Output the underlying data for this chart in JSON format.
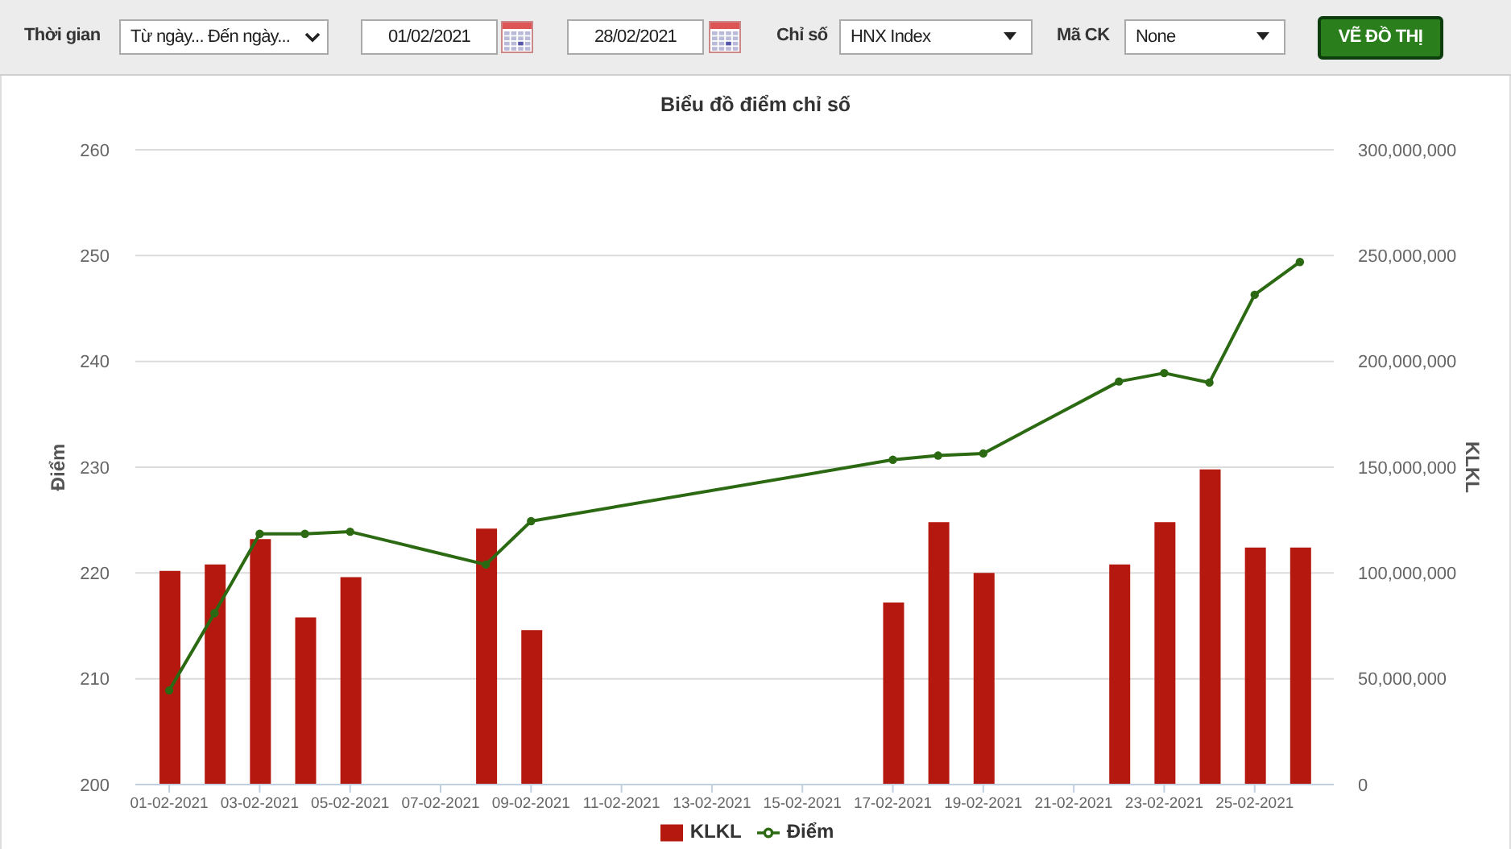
{
  "chart_data": {
    "type": "bar",
    "title": "Biểu đồ điểm chỉ số",
    "ylabel": "Điểm",
    "y2label": "KLKL",
    "annotations": [
      "Thời gian",
      "Từ ngày... Đến ngày...",
      "01/02/2021",
      "28/02/2021",
      "Chỉ số",
      "HNX Index",
      "Mã CK",
      "None",
      "VẼ ĐỒ THỊ"
    ],
    "x": [
      "2021-02-01",
      "2021-02-02",
      "2021-02-03",
      "2021-02-04",
      "2021-02-05",
      "2021-02-08",
      "2021-02-09",
      "2021-02-17",
      "2021-02-18",
      "2021-02-19",
      "2021-02-22",
      "2021-02-23",
      "2021-02-24",
      "2021-02-25",
      "2021-02-26"
    ],
    "series": [
      {
        "name": "KLKL",
        "axis": "y2",
        "color": "#b5180f",
        "values": [
          101000000,
          104000000,
          116000000,
          79000000,
          98000000,
          121000000,
          73000000,
          86000000,
          124000000,
          100000000,
          104000000,
          124000000,
          149000000,
          112000000,
          112000000
        ]
      },
      {
        "name": "Điểm",
        "type": "line",
        "color": "#2b6a12",
        "values": [
          208.9,
          216.2,
          223.7,
          223.7,
          223.9,
          220.8,
          224.9,
          230.7,
          231.1,
          231.3,
          238.1,
          238.9,
          238.0,
          246.3,
          249.4
        ]
      }
    ],
    "xlim": [
      "2021-01-31T06:00",
      "2021-02-26T18:00"
    ],
    "xticks": [
      {
        "value": "2021-02-01",
        "label": "01-02-2021"
      },
      {
        "value": "2021-02-03",
        "label": "03-02-2021"
      },
      {
        "value": "2021-02-05",
        "label": "05-02-2021"
      },
      {
        "value": "2021-02-07",
        "label": "07-02-2021"
      },
      {
        "value": "2021-02-09",
        "label": "09-02-2021"
      },
      {
        "value": "2021-02-11",
        "label": "11-02-2021"
      },
      {
        "value": "2021-02-13",
        "label": "13-02-2021"
      },
      {
        "value": "2021-02-15",
        "label": "15-02-2021"
      },
      {
        "value": "2021-02-17",
        "label": "17-02-2021"
      },
      {
        "value": "2021-02-19",
        "label": "19-02-2021"
      },
      {
        "value": "2021-02-21",
        "label": "21-02-2021"
      },
      {
        "value": "2021-02-23",
        "label": "23-02-2021"
      },
      {
        "value": "2021-02-25",
        "label": "25-02-2021"
      }
    ],
    "ylim": [
      200,
      260
    ],
    "yticks": [
      200,
      210,
      220,
      230,
      240,
      250,
      260
    ],
    "y2lim": [
      0,
      300000000
    ],
    "y2ticks": [
      0,
      {
        "value": 50000000,
        "label": "50,000,000"
      },
      {
        "value": 100000000,
        "label": "100,000,000"
      },
      {
        "value": 150000000,
        "label": "150,000,000"
      },
      {
        "value": 200000000,
        "label": "200,000,000"
      },
      {
        "value": 250000000,
        "label": "250,000,000"
      },
      {
        "value": 300000000,
        "label": "300,000,000"
      }
    ],
    "grid": "y",
    "legend": "bottom",
    "marker": "circle",
    "line_style": "solid"
  }
}
